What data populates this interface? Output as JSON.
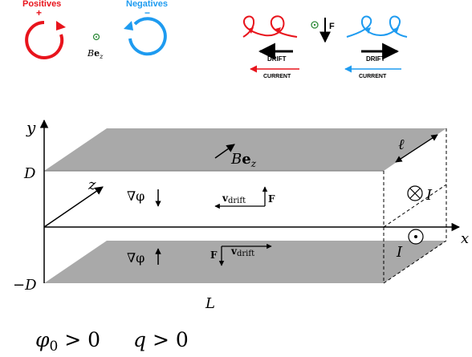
{
  "top": {
    "positives_label": "Positives",
    "positives_sign": "+",
    "negatives_label": "Negatives",
    "negatives_sign": "−",
    "field_label_B": "B",
    "field_label_e": "e",
    "field_label_sub": "z",
    "force_label": "F",
    "drift_left": "DRIFT",
    "drift_right": "DRIFT",
    "current_left": "CURRENT",
    "current_right": "CURRENT",
    "colors": {
      "red": "#e8141c",
      "blue": "#1e9bf0",
      "green": "#2e8b3a"
    }
  },
  "diagram": {
    "axis_y": "y",
    "axis_x": "x",
    "axis_z": "z",
    "label_D": "D",
    "label_minus_D": "−D",
    "label_L": "L",
    "label_ell": "ℓ",
    "label_I_top": "I",
    "label_I_bottom": "I",
    "field_B": "B",
    "field_e": "e",
    "field_sub": "z",
    "grad_phi_top": "∇φ",
    "grad_phi_bottom": "∇φ",
    "v_drift_top": "v",
    "v_drift_top_sub": "drift",
    "v_drift_bottom": "v",
    "v_drift_bottom_sub": "drift",
    "force_top": "F",
    "force_bottom": "F",
    "plate_color": "#a9a9a9"
  },
  "conditions": {
    "phi_symbol": "φ",
    "phi_sub": "0",
    "phi_rel": " > 0",
    "q_text": "q",
    "q_rel": " > 0"
  }
}
